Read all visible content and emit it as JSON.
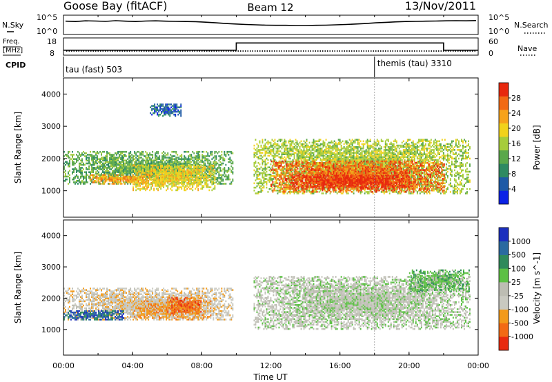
{
  "header": {
    "station": "Goose Bay (fitACF)",
    "beam": "Beam 12",
    "date": "13/Nov/2011"
  },
  "noise_panel": {
    "left_label": "N.Sky",
    "right_label": "N.Search",
    "left_ticks": [
      "10^5",
      "10^0"
    ],
    "right_ticks": [
      "10^5",
      "10^0"
    ],
    "nsky_values": [
      0.72,
      0.7,
      0.74,
      0.73,
      0.71,
      0.75,
      0.72,
      0.7,
      0.73,
      0.74,
      0.72,
      0.71,
      0.7,
      0.69,
      0.66,
      0.62,
      0.58,
      0.55,
      0.52,
      0.5,
      0.48,
      0.47,
      0.47,
      0.46,
      0.46,
      0.47,
      0.48,
      0.5,
      0.52,
      0.55,
      0.58,
      0.62,
      0.65,
      0.68,
      0.7,
      0.71,
      0.72,
      0.73,
      0.74,
      0.75,
      0.74,
      0.76
    ]
  },
  "freq_panel": {
    "label_freq": "Freq.",
    "label_unit": "[MHz]",
    "label_cpid": "CPID",
    "right_label": "Nave",
    "left_ticks": [
      "18",
      "8"
    ],
    "right_ticks": [
      "60",
      "0"
    ],
    "freq_segments": [
      {
        "t0": 0.0,
        "t1": 10.0,
        "value": 10.5
      },
      {
        "t0": 10.0,
        "t1": 22.0,
        "value": 15.5
      },
      {
        "t0": 22.0,
        "t1": 24.0,
        "value": 10.5
      }
    ],
    "cpid_labels": [
      {
        "text": "tau (fast) 503",
        "t": 0.0
      },
      {
        "text": "themis (tau) 3310",
        "t": 18.0
      }
    ]
  },
  "power_panel": {
    "ylabel": "Slant Range [km]",
    "colorbar_label": "Power [dB]",
    "colorbar_ticks": [
      "28",
      "24",
      "20",
      "16",
      "12",
      "8",
      "4"
    ],
    "colors": [
      "#0b22e6",
      "#1e5aa6",
      "#2e8a62",
      "#5aa84a",
      "#a6cc3a",
      "#f2d21a",
      "#f7a21a",
      "#f26a14",
      "#e8280e"
    ]
  },
  "velocity_panel": {
    "ylabel": "Slant Range [km]",
    "colorbar_label": "Velocity [m s^-1]",
    "colorbar_ticks": [
      "1000",
      "500",
      "100",
      "25",
      "-25",
      "-100",
      "-500",
      "-1000"
    ],
    "colors": [
      "#1b2fbe",
      "#2a6aa0",
      "#2f8a5a",
      "#5cc044",
      "#bdbdb3",
      "#c9c9c0",
      "#f29a1a",
      "#f26a14",
      "#e82a0e"
    ]
  },
  "chart_data": {
    "type": "heatmap",
    "xlabel": "Time UT",
    "x_ticks": [
      "00:00",
      "04:00",
      "08:00",
      "12:00",
      "16:00",
      "20:00",
      "00:00"
    ],
    "x_range_hours": [
      0,
      24
    ],
    "y_ticks": [
      "1000",
      "2000",
      "3000",
      "4000"
    ],
    "y_range_km": [
      180,
      4500
    ],
    "grid": false,
    "vertical_marker_hours": [
      18.0
    ],
    "power_regions": [
      {
        "t0": 0.0,
        "t1": 9.8,
        "r0": 1200,
        "r1": 2200,
        "level": 3
      },
      {
        "t0": 4.0,
        "t1": 8.8,
        "r0": 1000,
        "r1": 1800,
        "level": 5
      },
      {
        "t0": 1.5,
        "t1": 5.0,
        "r0": 1200,
        "r1": 1500,
        "level": 6
      },
      {
        "t0": 5.0,
        "t1": 6.8,
        "r0": 3300,
        "r1": 3700,
        "level": 1
      },
      {
        "t0": 11.0,
        "t1": 23.5,
        "r0": 900,
        "r1": 2600,
        "level": 4
      },
      {
        "t0": 12.0,
        "t1": 22.0,
        "r0": 950,
        "r1": 1900,
        "level": 7
      },
      {
        "t0": 13.0,
        "t1": 20.0,
        "r0": 1050,
        "r1": 1500,
        "level": 8
      }
    ],
    "velocity_regions": [
      {
        "t0": 0.0,
        "t1": 9.8,
        "r0": 1300,
        "r1": 2300,
        "level": 5
      },
      {
        "t0": 0.0,
        "t1": 3.5,
        "r0": 1300,
        "r1": 1600,
        "level": 1
      },
      {
        "t0": 4.0,
        "t1": 8.5,
        "r0": 1300,
        "r1": 1900,
        "level": 6
      },
      {
        "t0": 6.0,
        "t1": 8.0,
        "r0": 1500,
        "r1": 2000,
        "level": 7
      },
      {
        "t0": 11.0,
        "t1": 23.5,
        "r0": 1000,
        "r1": 2700,
        "level": 4
      },
      {
        "t0": 20.0,
        "t1": 23.5,
        "r0": 2200,
        "r1": 2900,
        "level": 3
      }
    ]
  }
}
